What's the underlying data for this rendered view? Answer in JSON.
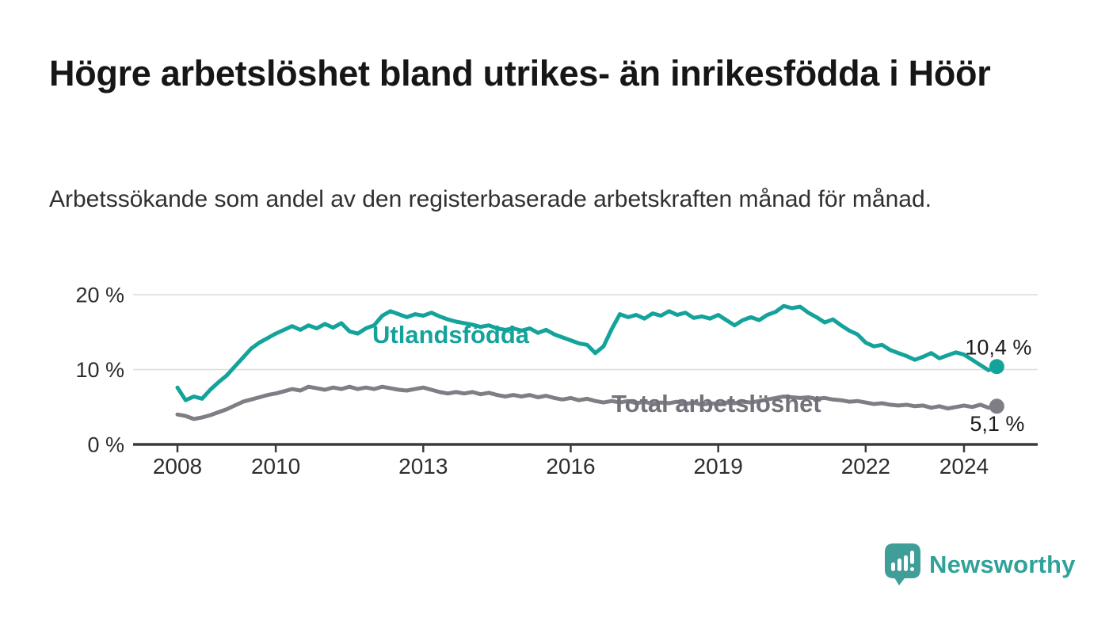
{
  "page": {
    "language": "sv"
  },
  "branding": {
    "logo_text": "Newsworthy",
    "logo_icon": "bar-chart-speech-bubble-icon",
    "logo_icon_color": "#3f9e97",
    "logo_text_color": "#31a29a"
  },
  "chart_data": {
    "type": "line",
    "title": "Högre arbetslöshet bland utrikes- än inrikesfödda i Höör",
    "subtitle": "Arbetssökande som andel av den registerbaserade arbetskraften månad för månad.",
    "unit": "%",
    "grid": "horizontal-only",
    "legend": "inline-series-labels",
    "sampling": "every 2 months, Jan 2008 – Sep 2024 (values read from chart)",
    "x_start": 2008.0,
    "x_step": 0.166667,
    "x_axis": {
      "ticks": [
        2008,
        2010,
        2013,
        2016,
        2019,
        2022,
        2024
      ],
      "range_years": [
        2007.1,
        2025.4
      ]
    },
    "y_axis": {
      "ticks": [
        "0 %",
        "10 %",
        "20 %"
      ],
      "tick_values": [
        0,
        10,
        20
      ],
      "range": [
        0,
        21
      ]
    },
    "colors": {
      "gridline": "#dcdcdc",
      "axis": "#3b3b3b",
      "tick_labels": "#2d2d2d",
      "end_value_labels": "#1c1c1c"
    },
    "series": [
      {
        "name": "Utlandsfödda",
        "color": "#14a39b",
        "label_color": "#14a39b",
        "end_value": 10.4,
        "end_value_label": "10,4 %",
        "values": [
          7.6,
          5.9,
          6.4,
          6.1,
          7.3,
          8.3,
          9.2,
          10.4,
          11.6,
          12.8,
          13.6,
          14.2,
          14.8,
          15.3,
          15.8,
          15.3,
          15.9,
          15.5,
          16.1,
          15.6,
          16.2,
          15.1,
          14.8,
          15.5,
          15.9,
          17.2,
          17.8,
          17.4,
          17.0,
          17.4,
          17.2,
          17.6,
          17.1,
          16.7,
          16.4,
          16.2,
          16.0,
          15.7,
          15.9,
          15.5,
          15.3,
          15.5,
          15.2,
          15.5,
          14.9,
          15.3,
          14.7,
          14.3,
          13.9,
          13.5,
          13.3,
          12.2,
          13.1,
          15.4,
          17.4,
          17.0,
          17.3,
          16.8,
          17.5,
          17.2,
          17.8,
          17.3,
          17.6,
          16.9,
          17.1,
          16.8,
          17.3,
          16.6,
          15.9,
          16.6,
          17.0,
          16.6,
          17.3,
          17.7,
          18.5,
          18.2,
          18.4,
          17.6,
          17.0,
          16.3,
          16.7,
          15.9,
          15.2,
          14.7,
          13.6,
          13.1,
          13.3,
          12.6,
          12.2,
          11.8,
          11.3,
          11.7,
          12.2,
          11.5,
          11.9,
          12.3,
          12.0,
          11.3,
          10.6,
          9.9,
          10.4
        ]
      },
      {
        "name": "Total arbetslöshet",
        "color": "#7e7e84",
        "label_color": "#72727a",
        "end_value": 5.1,
        "end_value_label": "5,1 %",
        "values": [
          4.0,
          3.8,
          3.4,
          3.6,
          3.9,
          4.3,
          4.7,
          5.2,
          5.7,
          6.0,
          6.3,
          6.6,
          6.8,
          7.1,
          7.4,
          7.2,
          7.7,
          7.5,
          7.3,
          7.6,
          7.4,
          7.7,
          7.4,
          7.6,
          7.4,
          7.7,
          7.5,
          7.3,
          7.2,
          7.4,
          7.6,
          7.3,
          7.0,
          6.8,
          7.0,
          6.8,
          7.0,
          6.7,
          6.9,
          6.6,
          6.4,
          6.6,
          6.4,
          6.6,
          6.3,
          6.5,
          6.2,
          6.0,
          6.2,
          5.9,
          6.1,
          5.8,
          5.6,
          5.8,
          5.6,
          5.8,
          5.5,
          5.7,
          5.4,
          5.6,
          5.5,
          5.7,
          5.4,
          5.6,
          5.3,
          5.5,
          5.4,
          5.6,
          5.5,
          5.7,
          5.6,
          5.8,
          6.0,
          6.2,
          6.4,
          6.3,
          6.2,
          6.3,
          6.1,
          6.2,
          6.0,
          5.9,
          5.7,
          5.8,
          5.6,
          5.4,
          5.5,
          5.3,
          5.2,
          5.3,
          5.1,
          5.2,
          4.9,
          5.1,
          4.8,
          5.0,
          5.2,
          5.0,
          5.3,
          4.9,
          5.1
        ]
      }
    ]
  }
}
